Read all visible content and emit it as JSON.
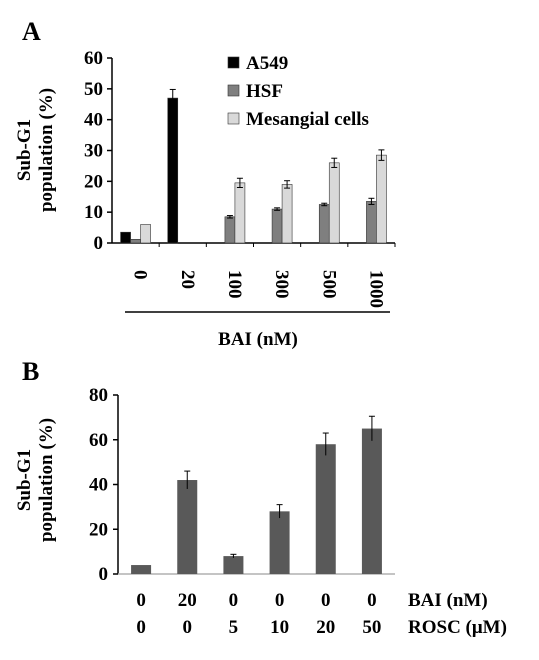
{
  "chart_data": [
    {
      "panel": "A",
      "type": "bar",
      "ylabel_line1": "Sub-G1",
      "ylabel_line2": "population (%)",
      "xlabel": "BAI (nM)",
      "categories": [
        "0",
        "20",
        "100",
        "300",
        "500",
        "1000"
      ],
      "ylim": [
        0,
        60
      ],
      "yticks": [
        0,
        10,
        20,
        30,
        40,
        50,
        60
      ],
      "legend_position": "top-right",
      "series": [
        {
          "name": "A549",
          "color": "#000000",
          "values": [
            3.5,
            47,
            null,
            null,
            null,
            null
          ],
          "errors": [
            0,
            2.8,
            0,
            0,
            0,
            0
          ]
        },
        {
          "name": "HSF",
          "color": "#7f7f7f",
          "values": [
            1.2,
            null,
            8.5,
            11,
            12.5,
            13.5
          ],
          "errors": [
            0,
            0,
            0.4,
            0.4,
            0.4,
            1.0
          ]
        },
        {
          "name": "Mesangial cells",
          "color": "#d9d9d9",
          "values": [
            6,
            null,
            19.5,
            19,
            26,
            28.5
          ],
          "errors": [
            0,
            0,
            1.5,
            1.2,
            1.5,
            1.7
          ]
        }
      ],
      "grid": false
    },
    {
      "panel": "B",
      "type": "bar",
      "ylabel_line1": "Sub-G1",
      "ylabel_line2": "population (%)",
      "ylim": [
        0,
        80
      ],
      "yticks": [
        0,
        20,
        40,
        60,
        80
      ],
      "row_labels": [
        "BAI (nM)",
        "ROSC (μM)"
      ],
      "rows": [
        [
          "0",
          "20",
          "0",
          "0",
          "0",
          "0"
        ],
        [
          "0",
          "0",
          "5",
          "10",
          "20",
          "50"
        ]
      ],
      "series": [
        {
          "color": "#595959",
          "values": [
            4,
            42,
            8,
            28,
            58,
            65
          ],
          "errors": [
            0,
            4,
            0.8,
            3,
            5,
            5.5
          ]
        }
      ],
      "grid": false
    }
  ]
}
